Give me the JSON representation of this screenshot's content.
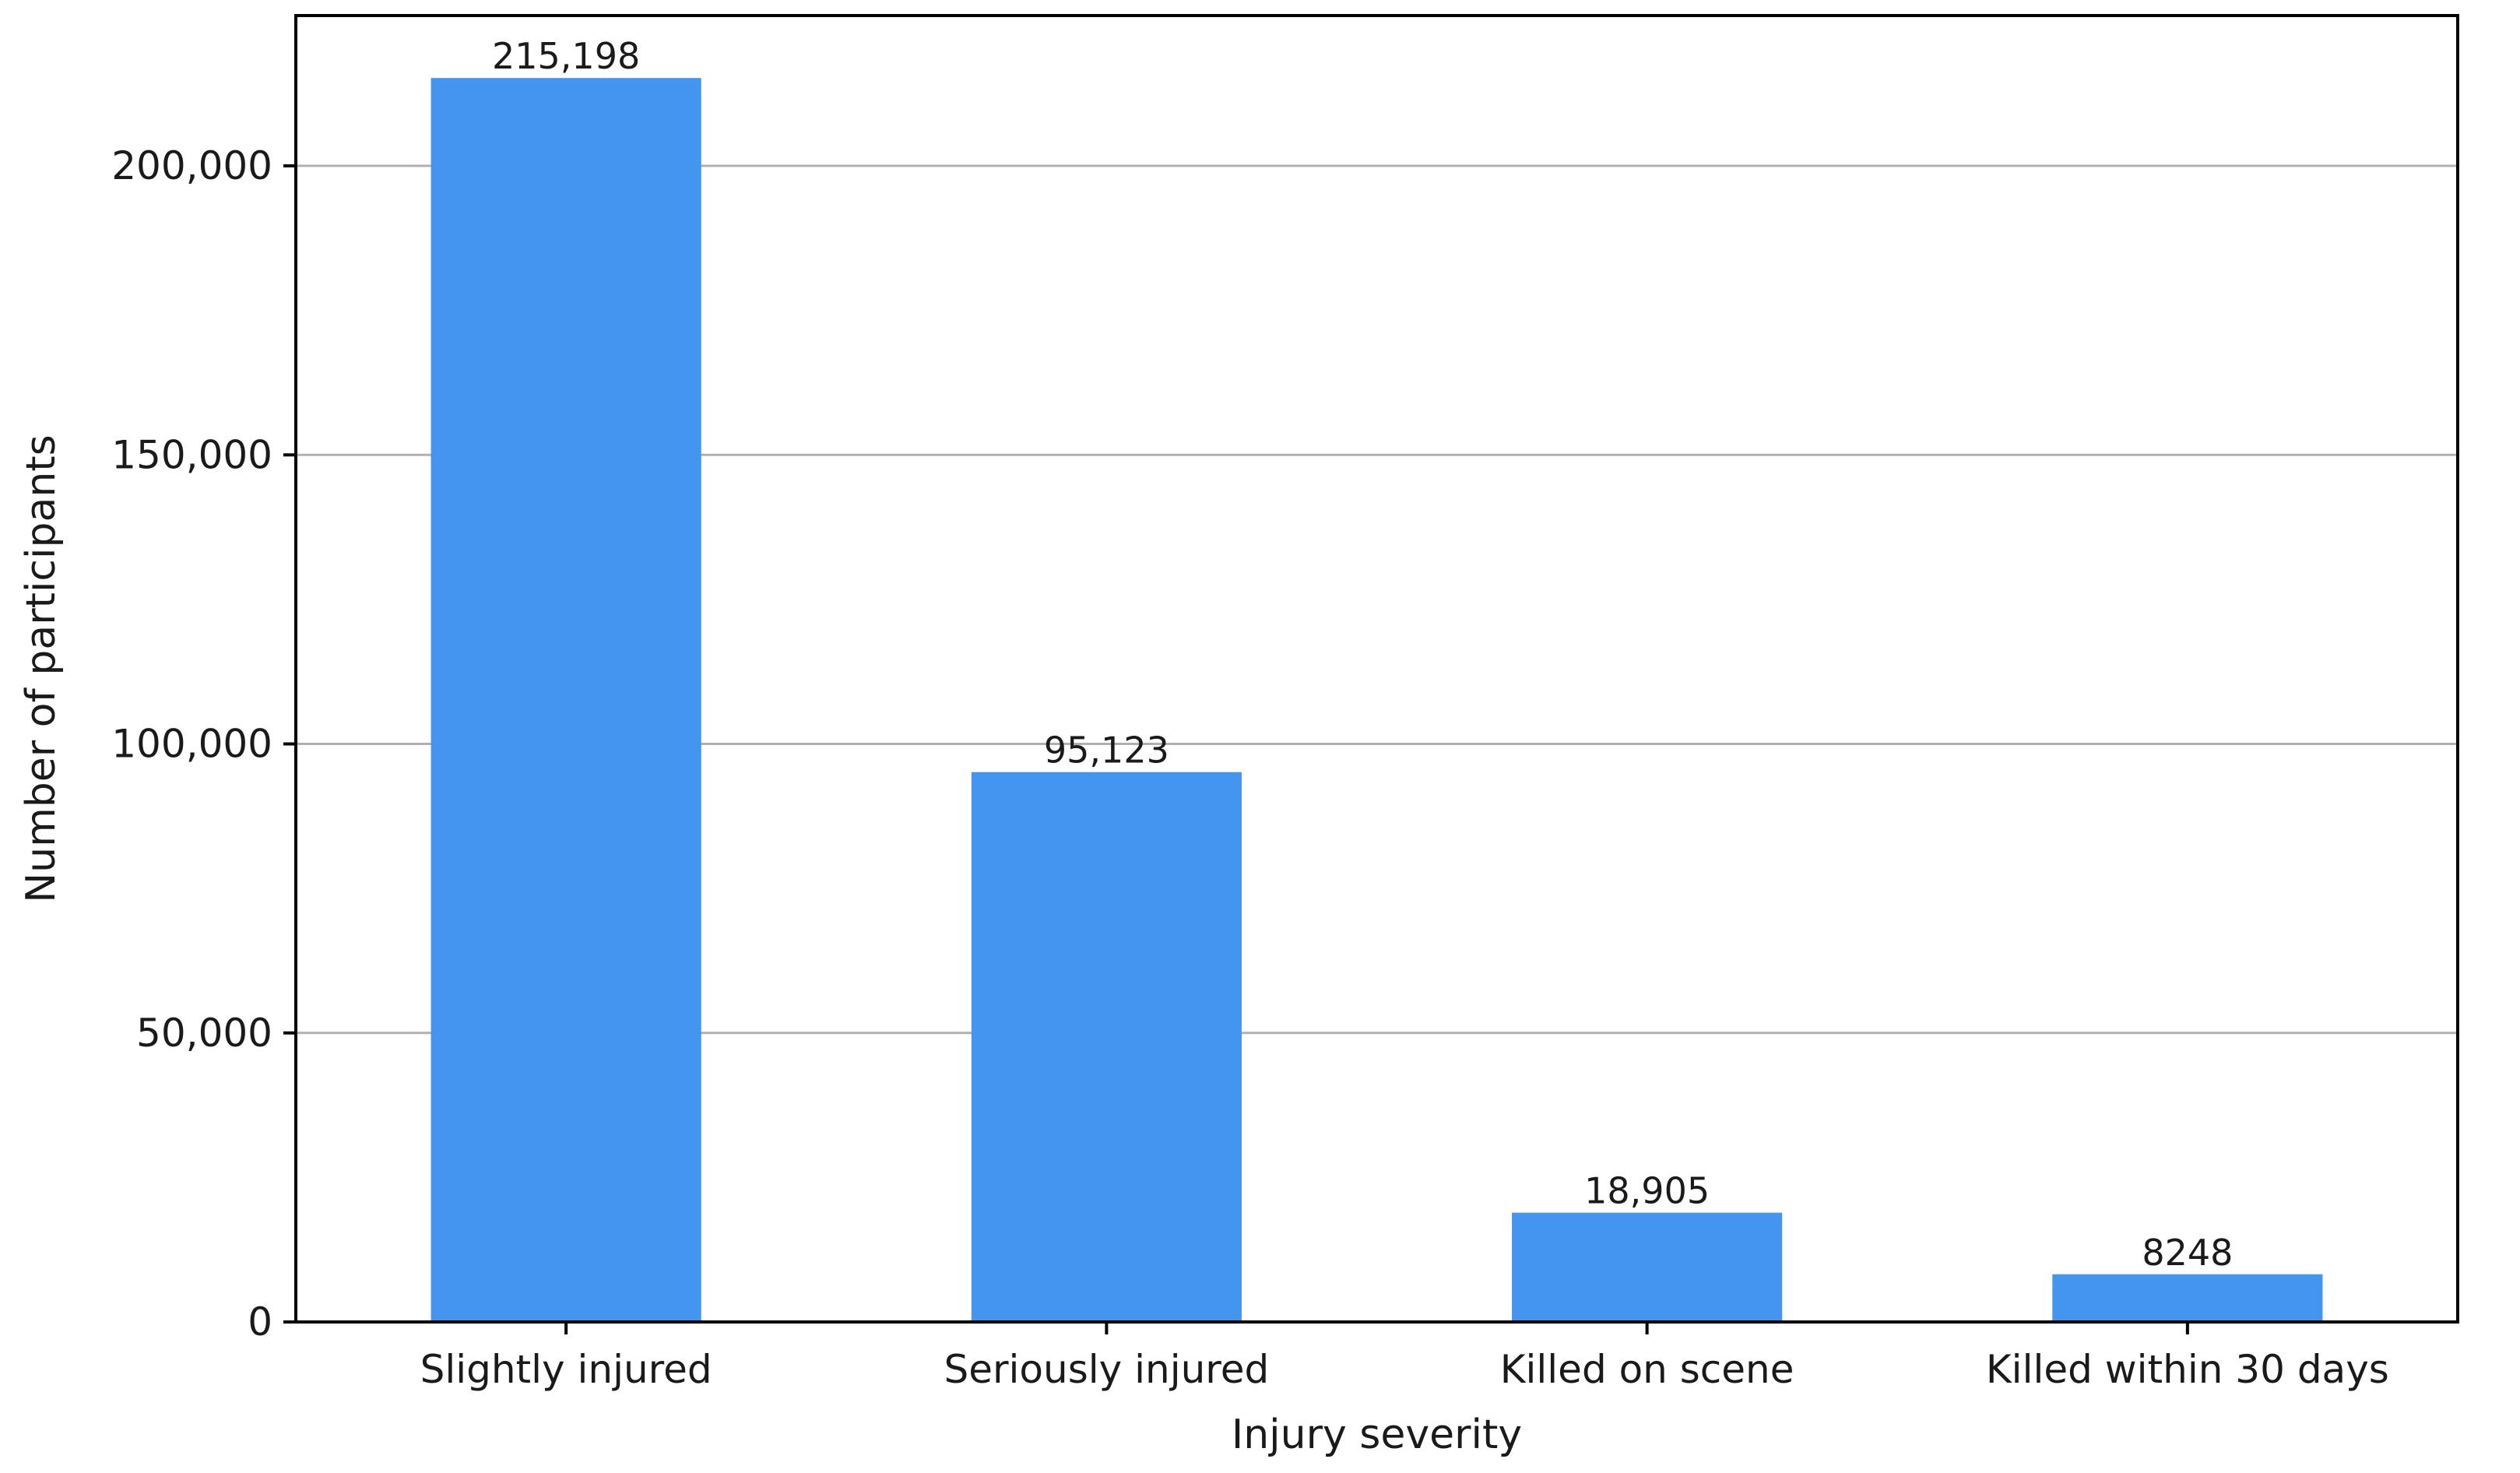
{
  "chart_data": {
    "type": "bar",
    "title": "",
    "xlabel": "Injury severity",
    "ylabel": "Number of participants",
    "categories": [
      "Slightly injured",
      "Seriously injured",
      "Killed on scene",
      "Killed within 30 days"
    ],
    "values": [
      215198,
      95123,
      18905,
      8248
    ],
    "value_labels": [
      "215,198",
      "95,123",
      "18,905",
      "8248"
    ],
    "ylim": [
      0,
      226000
    ],
    "yticks": [
      0,
      50000,
      100000,
      150000,
      200000
    ],
    "ytick_labels": [
      "0",
      "50,000",
      "100,000",
      "150,000",
      "200,000"
    ],
    "bar_color": "#4495ed",
    "grid": "y",
    "legend": "none"
  }
}
